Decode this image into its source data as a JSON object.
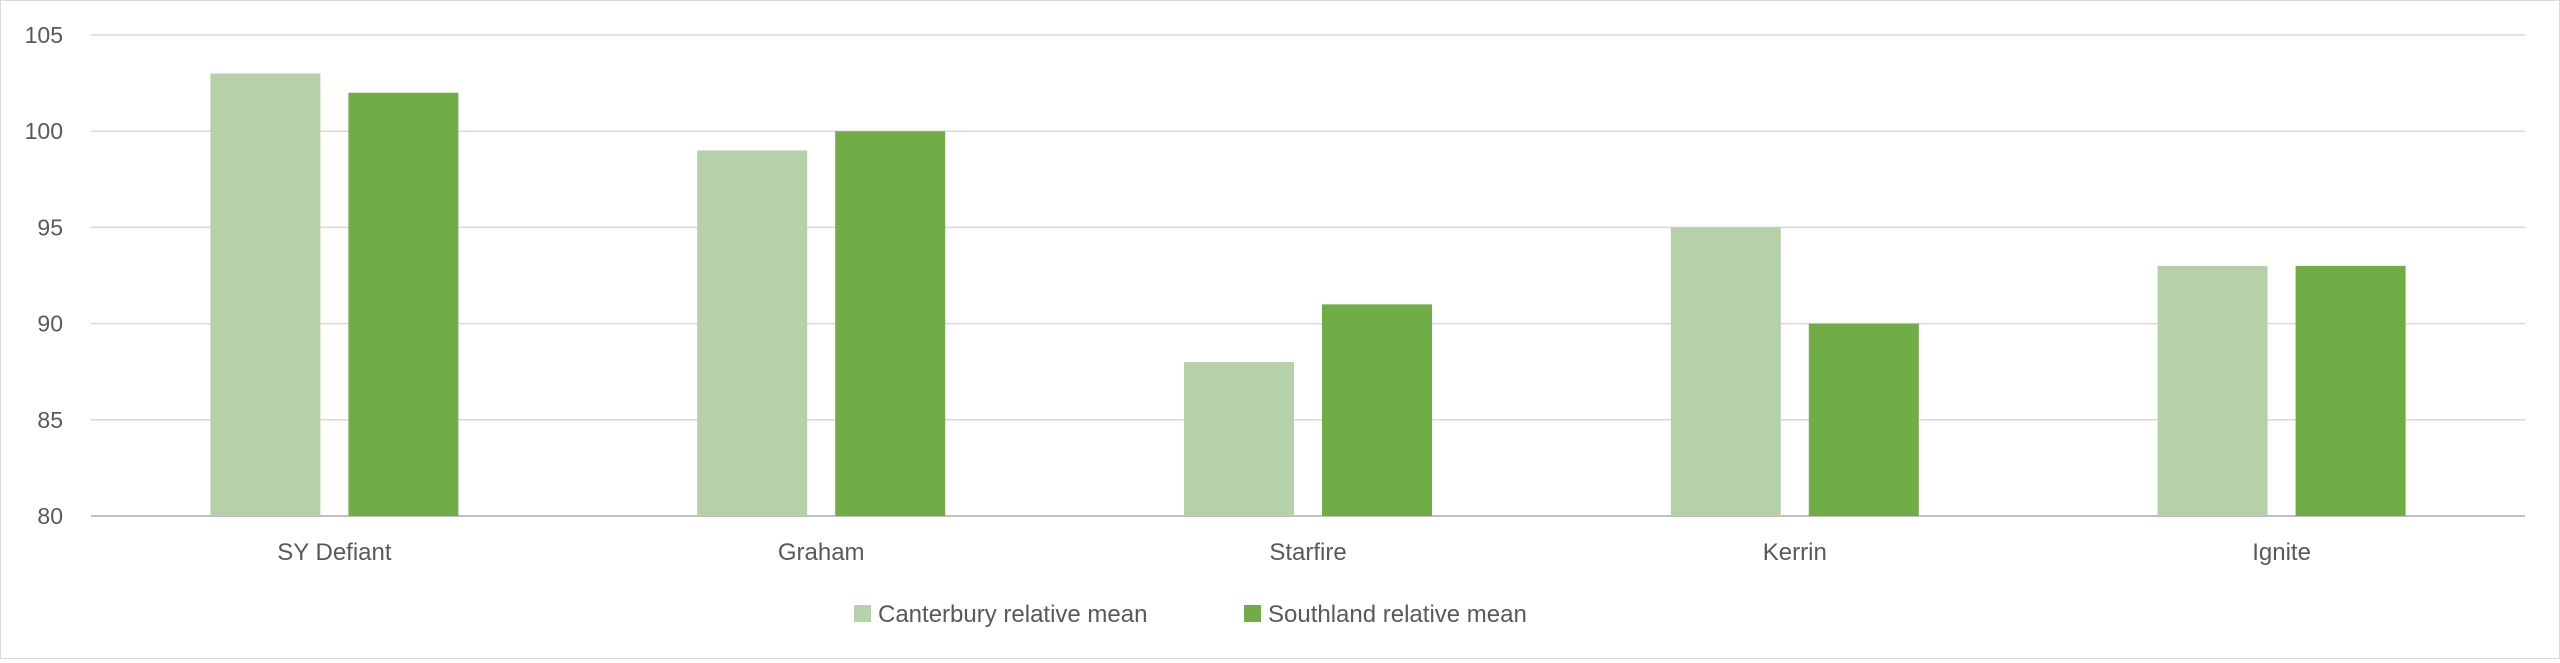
{
  "chart_data": {
    "type": "bar",
    "title": "",
    "xlabel": "",
    "ylabel": "",
    "categories": [
      "SY Defiant",
      "Graham",
      "Starfire",
      "Kerrin",
      "Ignite"
    ],
    "series": [
      {
        "name": "Canterbury relative mean",
        "values": [
          103,
          99,
          88,
          95,
          93
        ],
        "color": "#b5d1a9"
      },
      {
        "name": "Southland relative mean",
        "values": [
          102,
          100,
          91,
          90,
          93
        ],
        "color": "#70ad47"
      }
    ],
    "ylim": [
      80,
      105
    ],
    "yticks": [
      80,
      85,
      90,
      95,
      100,
      105
    ],
    "grid": true,
    "legend": "bottom"
  }
}
